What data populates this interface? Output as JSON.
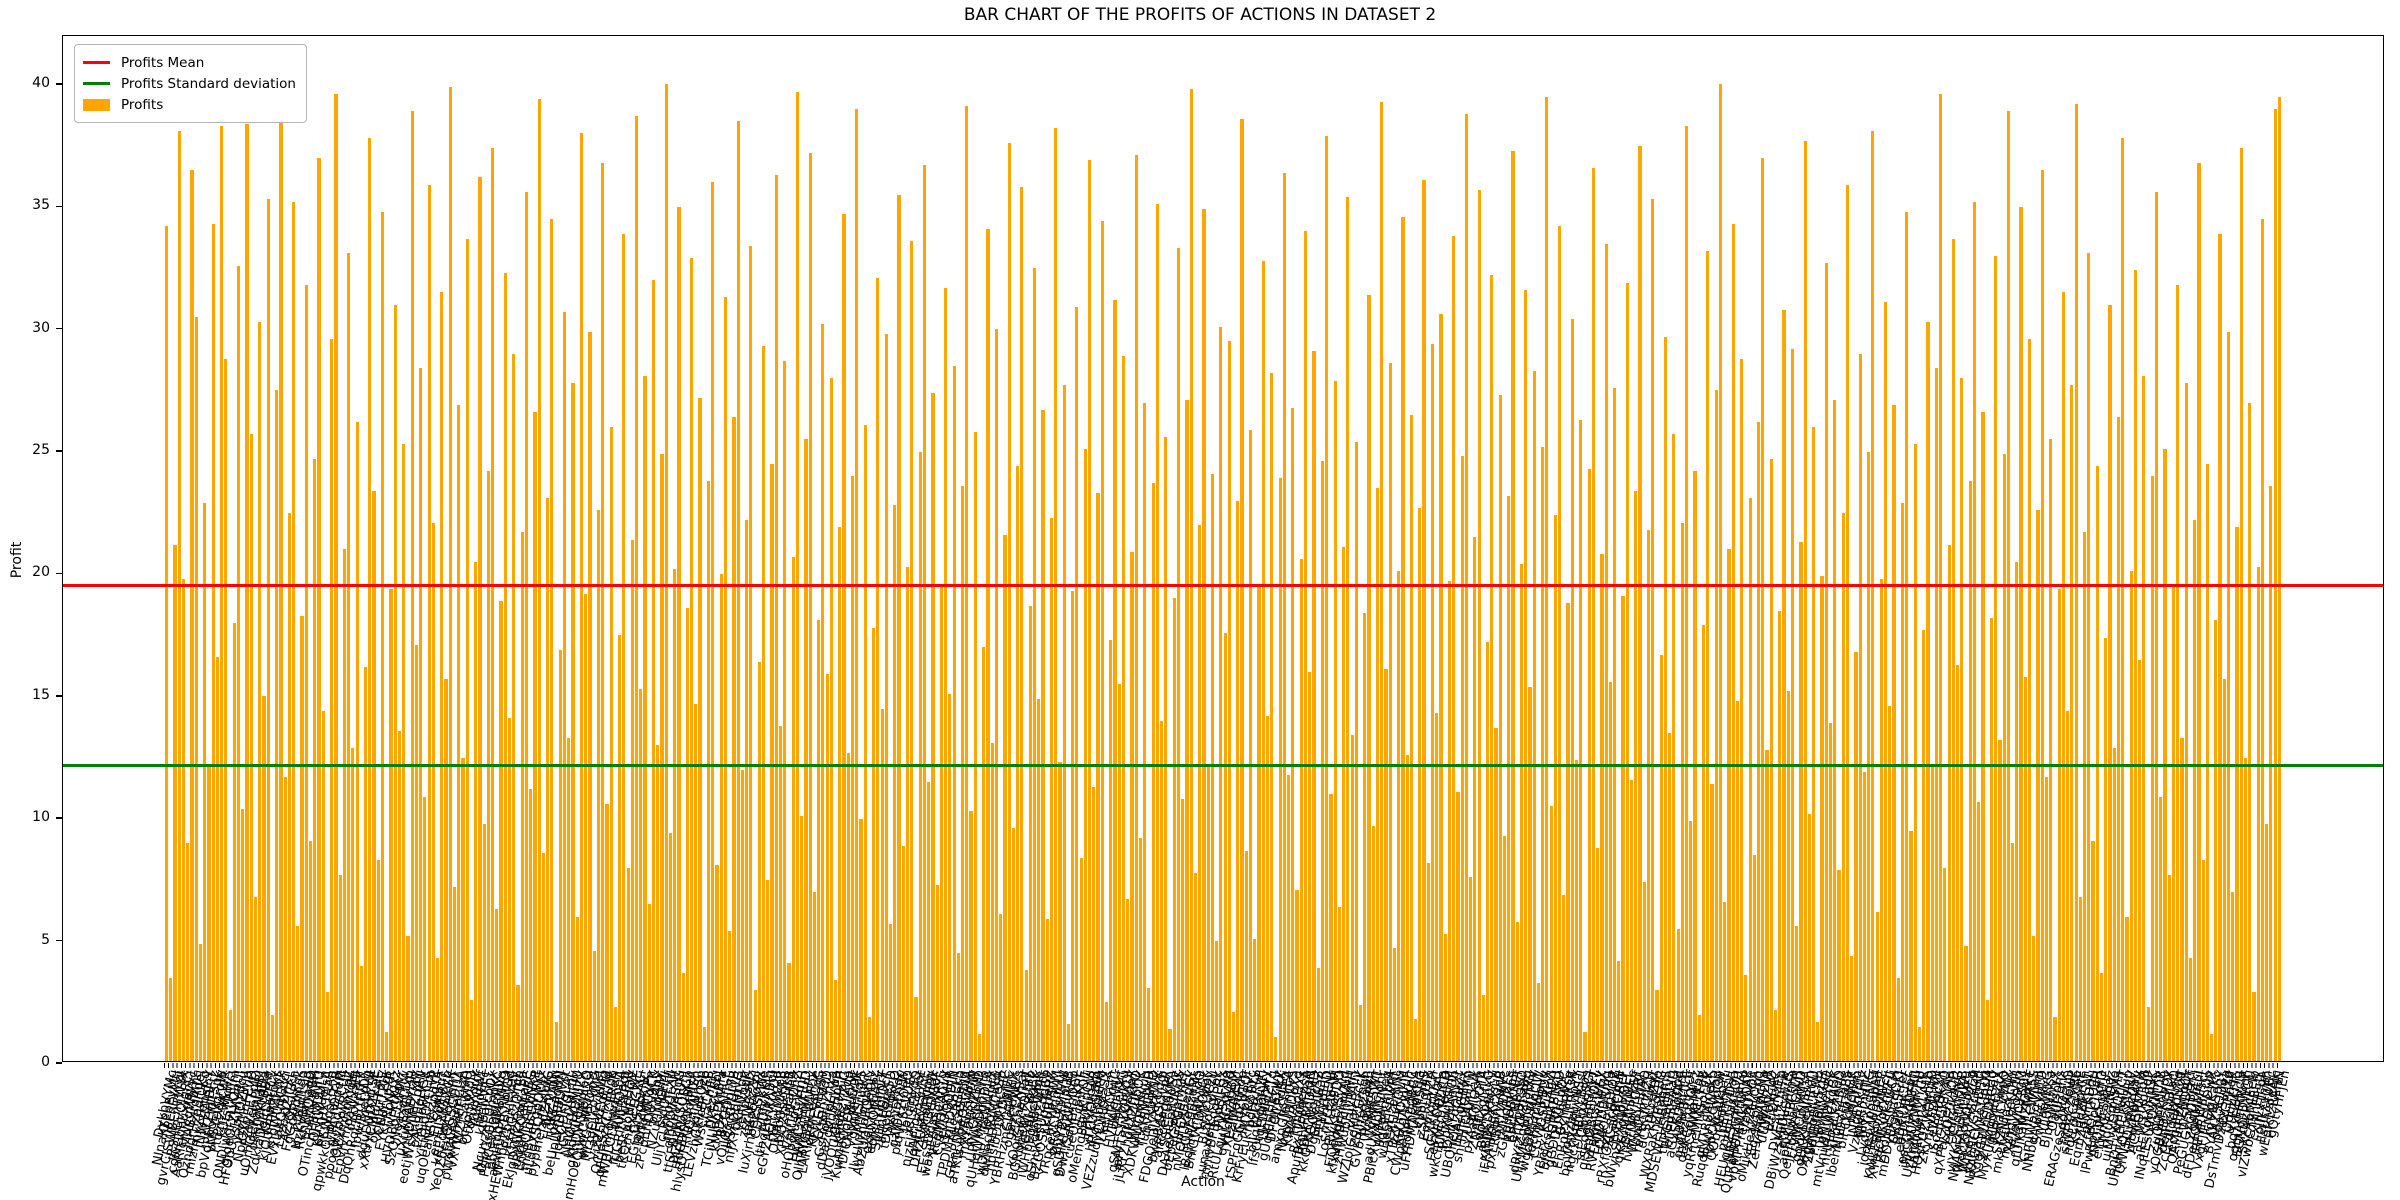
{
  "chart_data": {
    "type": "bar",
    "title": "BAR CHART OF THE PROFITS OF ACTIONS IN DATASET 2",
    "xlabel": "Action",
    "ylabel": "Profit",
    "ylim": [
      0,
      42
    ],
    "yticks": [
      0,
      5,
      10,
      15,
      20,
      25,
      30,
      35,
      40
    ],
    "grid": false,
    "bar_color": "#FFA500",
    "n_bars": 500,
    "reference_lines": [
      {
        "name": "mean",
        "label": "Profits Mean",
        "value": 19.55,
        "color": "#FF0000"
      },
      {
        "name": "std",
        "label": "Profits Standard deviation",
        "value": 12.2,
        "color": "#008000"
      }
    ],
    "legend": {
      "position": "upper left",
      "entries": [
        {
          "label": "Profits Mean",
          "swatch": "line",
          "color": "#FF0000"
        },
        {
          "label": "Profits Standard deviation",
          "swatch": "line",
          "color": "#008000"
        },
        {
          "label": "Profits",
          "swatch": "patch",
          "color": "#FFA500"
        }
      ]
    },
    "x_labels": {
      "note": "500 rotated action-name tick labels, overlapping and illegible at this scale",
      "generator": {
        "seed": 7,
        "min_len": 8,
        "max_len": 14,
        "charset": "ABCDEFGHIJKLMNOPQRSTUVWXYZabcdefghijklmnopqrstuvwxyz",
        "rotation_deg": 78
      }
    },
    "values_rows": [
      [
        34.1,
        3.4,
        21.1,
        38.0,
        19.7,
        8.9,
        36.4,
        30.4,
        4.8,
        22.8,
        12.1,
        34.2,
        16.5,
        38.2,
        28.7,
        2.1,
        17.9,
        32.5,
        10.3,
        38.3,
        25.6,
        6.7,
        30.2,
        14.9,
        35.2
      ],
      [
        1.9,
        27.4,
        39.1,
        11.6,
        22.4,
        35.1,
        5.5,
        18.2,
        31.7,
        9.0,
        24.6,
        36.9,
        14.3,
        2.8,
        29.5,
        39.5,
        7.6,
        20.9,
        33.0,
        12.8,
        26.1,
        3.9,
        16.1,
        37.7,
        23.3
      ],
      [
        8.2,
        34.7,
        1.2,
        19.3,
        30.9,
        13.5,
        25.2,
        5.1,
        38.8,
        17.0,
        28.3,
        10.8,
        35.8,
        22.0,
        4.2,
        31.4,
        15.6,
        39.8,
        7.1,
        26.8,
        12.4,
        33.6,
        2.5,
        20.4,
        36.1
      ],
      [
        9.7,
        24.1,
        37.3,
        6.2,
        18.8,
        32.2,
        14.0,
        28.9,
        3.1,
        21.6,
        35.5,
        11.1,
        26.5,
        39.3,
        8.5,
        23.0,
        34.4,
        1.6,
        16.8,
        30.6,
        13.2,
        27.7,
        5.9,
        37.9,
        19.1
      ],
      [
        29.8,
        4.5,
        22.5,
        36.7,
        10.5,
        25.9,
        2.2,
        17.4,
        33.8,
        7.9,
        21.3,
        38.6,
        15.2,
        28.0,
        6.4,
        31.9,
        12.9,
        24.8,
        39.9,
        9.3,
        20.1,
        34.9,
        3.6,
        18.5,
        32.8
      ],
      [
        14.6,
        27.1,
        1.4,
        23.7,
        35.9,
        8.0,
        19.9,
        31.2,
        5.3,
        26.3,
        38.4,
        11.9,
        22.1,
        33.3,
        2.9,
        16.3,
        29.2,
        7.4,
        24.4,
        36.2,
        13.7,
        28.6,
        4.0,
        20.6,
        39.6
      ],
      [
        10.0,
        25.4,
        37.1,
        6.9,
        18.0,
        30.1,
        15.8,
        27.9,
        3.3,
        21.8,
        34.6,
        12.6,
        23.9,
        38.9,
        9.9,
        26.0,
        1.8,
        17.7,
        32.0,
        14.4,
        29.7,
        5.6,
        22.7,
        35.4,
        8.8
      ],
      [
        20.2,
        33.5,
        2.6,
        24.9,
        36.6,
        11.4,
        27.3,
        7.2,
        19.5,
        31.6,
        15.0,
        28.4,
        4.4,
        23.5,
        39.0,
        10.2,
        25.7,
        1.1,
        16.9,
        34.0,
        13.0,
        29.9,
        6.0,
        21.5,
        37.5
      ],
      [
        9.5,
        24.3,
        35.7,
        3.7,
        18.6,
        32.4,
        14.8,
        26.6,
        5.8,
        22.2,
        38.1,
        12.2,
        27.6,
        1.5,
        19.2,
        30.8,
        8.3,
        25.0,
        36.8,
        11.2,
        23.2,
        34.3,
        2.4,
        17.2,
        31.1
      ],
      [
        15.4,
        28.8,
        6.6,
        20.8,
        37.0,
        9.1,
        26.9,
        3.0,
        23.6,
        35.0,
        13.9,
        25.5,
        1.3,
        18.9,
        33.2,
        10.7,
        27.0,
        39.7,
        7.7,
        21.9,
        34.8,
        12.0,
        24.0,
        4.9,
        30.0
      ],
      [
        17.5,
        29.4,
        2.0,
        22.9,
        38.5,
        8.6,
        25.8,
        5.0,
        19.4,
        32.7,
        14.1,
        28.1,
        1.0,
        23.8,
        36.3,
        11.7,
        26.7,
        7.0,
        20.5,
        33.9,
        15.9,
        29.0,
        3.8,
        24.5,
        37.8
      ],
      [
        10.9,
        27.8,
        6.3,
        21.0,
        35.3,
        13.3,
        25.3,
        2.3,
        18.3,
        31.3,
        9.6,
        23.4,
        39.2,
        16.0,
        28.5,
        4.6,
        20.0,
        34.5,
        12.5,
        26.4,
        1.7,
        22.6,
        36.0,
        8.1,
        29.3
      ],
      [
        14.2,
        30.5,
        5.2,
        19.6,
        33.7,
        11.0,
        24.7,
        38.7,
        7.5,
        21.4,
        35.6,
        2.7,
        17.1,
        32.1,
        13.6,
        27.2,
        9.2,
        23.1,
        37.2,
        5.7,
        20.3,
        31.5,
        15.3,
        28.2,
        3.2
      ],
      [
        25.1,
        39.4,
        10.4,
        22.3,
        34.1,
        6.8,
        18.7,
        30.3,
        12.3,
        26.2,
        1.2,
        24.2,
        36.5,
        8.7,
        20.7,
        33.4,
        15.5,
        27.5,
        4.1,
        19.0,
        31.8,
        11.5,
        23.3,
        37.4,
        7.3
      ],
      [
        21.7,
        35.2,
        2.9,
        16.6,
        29.6,
        13.4,
        25.6,
        5.4,
        22.0,
        38.2,
        9.8,
        24.1,
        1.9,
        17.8,
        33.1,
        11.3,
        27.4,
        39.9,
        6.5,
        20.9,
        34.2,
        14.7,
        28.7,
        3.5,
        23.0
      ],
      [
        8.4,
        26.1,
        36.9,
        12.7,
        24.6,
        2.1,
        18.4,
        30.7,
        15.1,
        29.1,
        5.5,
        21.2,
        37.6,
        10.1,
        25.9,
        1.6,
        19.8,
        32.6,
        13.8,
        27.0,
        7.8,
        22.4,
        35.8,
        4.3,
        16.7
      ],
      [
        28.9,
        11.8,
        24.9,
        38.0,
        6.1,
        19.7,
        31.0,
        14.5,
        26.8,
        3.4,
        22.8,
        34.7,
        9.4,
        25.2,
        1.4,
        17.6,
        30.2,
        12.1,
        28.3,
        39.5,
        7.9,
        21.1,
        33.6,
        16.2,
        27.9
      ],
      [
        4.7,
        23.7,
        35.1,
        10.6,
        26.5,
        2.5,
        18.1,
        32.9,
        13.1,
        24.8,
        38.8,
        8.9,
        20.4,
        34.9,
        15.7,
        29.5,
        5.1,
        22.5,
        36.4,
        11.6,
        25.4,
        1.8,
        19.3,
        31.4,
        14.3
      ],
      [
        27.6,
        39.1,
        6.7,
        21.6,
        33.0,
        9.0,
        24.3,
        3.6,
        17.3,
        30.9,
        12.8,
        26.3,
        37.7,
        5.9,
        20.0,
        32.3,
        16.4,
        28.0,
        2.2,
        23.9,
        35.5,
        10.8,
        25.0,
        7.6,
        19.5
      ],
      [
        31.7,
        13.2,
        27.7,
        4.2,
        22.1,
        36.7,
        8.2,
        24.4,
        1.1,
        18.0,
        33.8,
        15.6,
        29.8,
        6.9,
        21.8,
        37.3,
        12.4,
        26.9,
        2.8,
        20.2,
        34.4,
        9.7,
        23.5,
        38.9,
        39.4
      ]
    ]
  }
}
